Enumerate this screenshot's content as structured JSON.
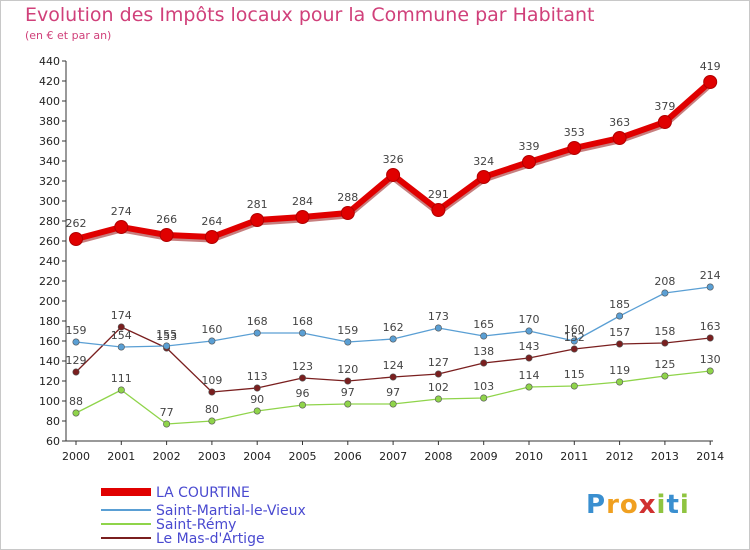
{
  "chart_data": {
    "type": "line",
    "title": "Evolution des Impôts locaux pour la Commune par Habitant",
    "subtitle": "(en € et par an)",
    "categories": [
      "2000",
      "2001",
      "2002",
      "2003",
      "2004",
      "2005",
      "2006",
      "2007",
      "2008",
      "2009",
      "2010",
      "2011",
      "2012",
      "2013",
      "2014"
    ],
    "y_ticks": [
      60,
      80,
      100,
      120,
      140,
      160,
      180,
      200,
      220,
      240,
      260,
      280,
      300,
      320,
      340,
      360,
      380,
      400,
      420,
      440
    ],
    "ylim": [
      60,
      440
    ],
    "grid": false,
    "legend_position": "bottom-left",
    "series": [
      {
        "name": "LA COURTINE",
        "color": "#e00000",
        "values": [
          262,
          274,
          266,
          264,
          281,
          284,
          288,
          326,
          291,
          324,
          339,
          353,
          363,
          379,
          419
        ],
        "labels": [
          "262",
          "274",
          "266",
          "264",
          "281",
          "284",
          "288",
          "326",
          "291",
          "324",
          "339",
          "353",
          "363",
          "379",
          "419"
        ]
      },
      {
        "name": "Saint-Martial-le-Vieux",
        "color": "#5a9fd4",
        "values": [
          159,
          154,
          155,
          160,
          168,
          168,
          159,
          162,
          173,
          165,
          170,
          160,
          185,
          208,
          214
        ],
        "labels": [
          "159",
          "154",
          "155",
          "160",
          "168",
          "168",
          "159",
          "162",
          "173",
          "165",
          "170",
          "160",
          "185",
          "208",
          "214"
        ]
      },
      {
        "name": "Saint-Rémy",
        "color": "#8fd44a",
        "values": [
          88,
          111,
          77,
          80,
          90,
          96,
          97,
          97,
          102,
          103,
          114,
          115,
          119,
          125,
          130
        ],
        "labels": [
          "88",
          "111",
          "77",
          "80",
          "90",
          "96",
          "97",
          "97",
          "102",
          "103",
          "114",
          "115",
          "119",
          "125",
          "130"
        ]
      },
      {
        "name": "Le Mas-d'Artige",
        "color": "#7a1f1f",
        "values": [
          129,
          174,
          153,
          109,
          113,
          123,
          120,
          124,
          127,
          138,
          143,
          152,
          157,
          158,
          163
        ],
        "labels": [
          "129",
          "174",
          "153",
          "109",
          "113",
          "123",
          "120",
          "124",
          "127",
          "138",
          "143",
          "152",
          "157",
          "158",
          "163"
        ]
      }
    ]
  },
  "watermark": {
    "letters": [
      "P",
      "r",
      "o",
      "x",
      "i",
      "t",
      "i"
    ],
    "colors": [
      "#3a8fd0",
      "#f0a020",
      "#f0a020",
      "#d03030",
      "#8fc440",
      "#3a8fd0",
      "#8fc440"
    ]
  }
}
